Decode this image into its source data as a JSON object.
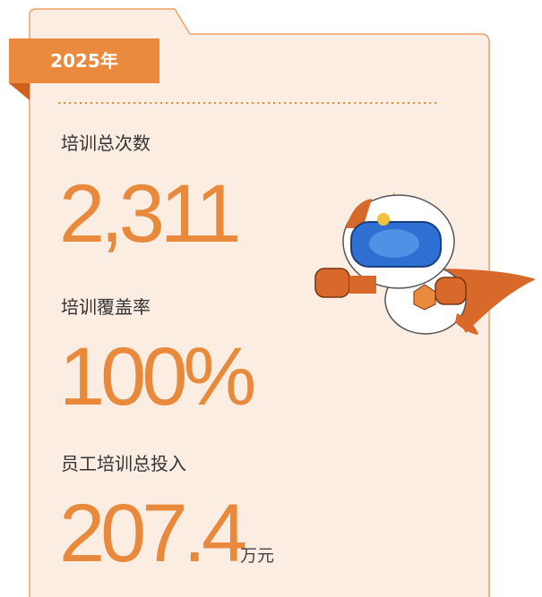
{
  "tab": "2025年",
  "metrics": [
    {
      "label": "培训总次数",
      "value": "2,311"
    },
    {
      "label": "培训覆盖率",
      "value": "100%"
    },
    {
      "label": "员工培训总投入",
      "value": "207.4",
      "unit": "万元"
    }
  ]
}
